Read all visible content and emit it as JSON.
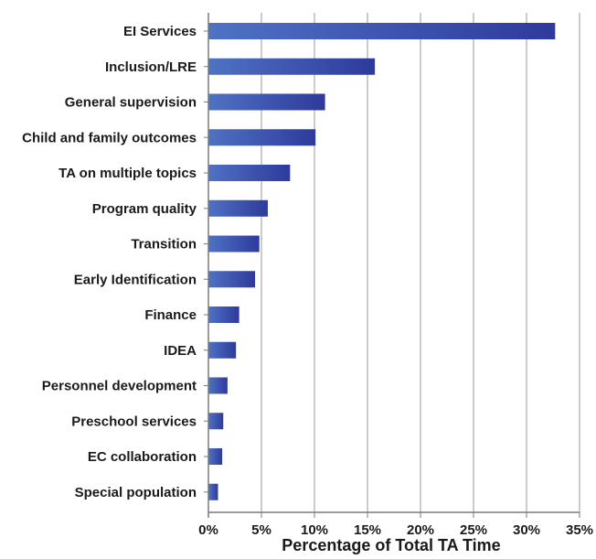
{
  "chart_data": {
    "type": "bar",
    "orientation": "horizontal",
    "categories": [
      "EI Services",
      "Inclusion/LRE",
      "General supervision",
      "Child and family outcomes",
      "TA on multiple topics",
      "Program quality",
      "Transition",
      "Early Identification",
      "Finance",
      "IDEA",
      "Personnel development",
      "Preschool services",
      "EC collaboration",
      "Special population"
    ],
    "values": [
      32.7,
      15.7,
      11.0,
      10.1,
      7.7,
      5.6,
      4.8,
      4.4,
      2.9,
      2.6,
      1.8,
      1.4,
      1.3,
      0.9
    ],
    "xlabel": "Percentage of Total TA Time",
    "ylabel": "",
    "title": "",
    "xlim": [
      0,
      35
    ],
    "xticks": [
      0,
      5,
      10,
      15,
      20,
      25,
      30,
      35
    ],
    "xtick_labels": [
      "0%",
      "5%",
      "10%",
      "15%",
      "20%",
      "25%",
      "30%",
      "35%"
    ],
    "grid": "vertical",
    "legend": "none",
    "colors": {
      "bar_light": "#4f72c4",
      "bar_dark": "#2e3a9c",
      "grid": "#9a9a9a",
      "axis": "#7a7a7a"
    }
  }
}
